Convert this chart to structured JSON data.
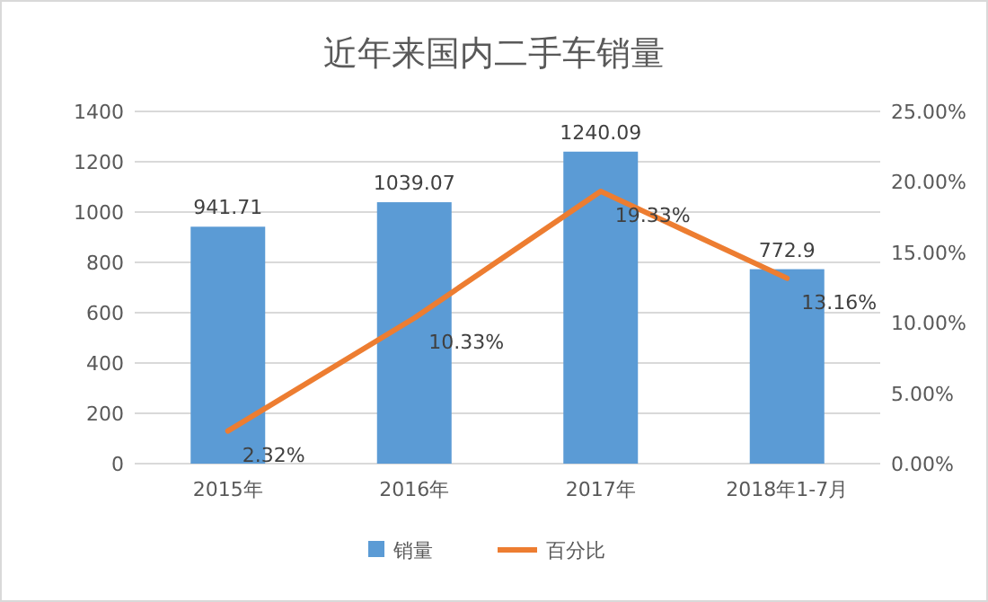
{
  "chart_data": {
    "type": "bar",
    "title": "近年来国内二手车销量",
    "categories": [
      "2015年",
      "2016年",
      "2017年",
      "2018年1-7月"
    ],
    "series": [
      {
        "name": "销量",
        "color": "#5b9bd5",
        "values": [
          941.71,
          1039.07,
          1240.09,
          772.9
        ],
        "value_labels": [
          "941.71",
          "1039.07",
          "1240.09",
          "772.9"
        ]
      },
      {
        "name": "百分比",
        "type": "line",
        "axis": "y2",
        "color": "#ed7d31",
        "values": [
          2.32,
          10.33,
          19.33,
          13.16
        ],
        "value_labels": [
          "2.32%",
          "10.33%",
          "19.33%",
          "13.16%"
        ]
      }
    ],
    "ylim": [
      0,
      1400
    ],
    "yticks": [
      0,
      200,
      400,
      600,
      800,
      1000,
      1200,
      1400
    ],
    "y2lim": [
      0,
      25
    ],
    "y2ticks": [
      {
        "value": 0,
        "label": "0.00%"
      },
      {
        "value": 5,
        "label": "5.00%"
      },
      {
        "value": 10,
        "label": "10.00%"
      },
      {
        "value": 15,
        "label": "15.00%"
      },
      {
        "value": 20,
        "label": "20.00%"
      },
      {
        "value": 25,
        "label": "25.00%"
      }
    ],
    "grid": "y",
    "legend": "bottom",
    "marker": "none"
  }
}
